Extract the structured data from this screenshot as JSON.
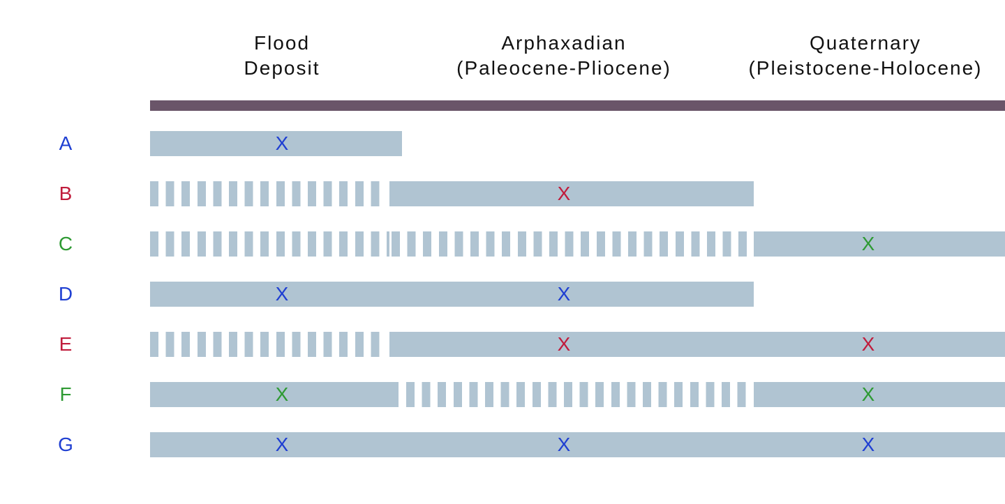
{
  "headers": {
    "flood": {
      "line1": "Flood",
      "line2": "Deposit"
    },
    "arphaxadian": {
      "line1": "Arphaxadian",
      "line2": "(Paleocene-Pliocene)"
    },
    "quaternary": {
      "line1": "Quaternary",
      "line2": "(Pleistocene-Holocene)"
    }
  },
  "colors": {
    "blue": "#1f3fd2",
    "red": "#c01c3c",
    "green": "#2e9a33",
    "bar": "#b0c4d2",
    "timeline": "#6a5569"
  },
  "rows": [
    {
      "label": "A",
      "color": "blue",
      "segments": {
        "flood": "solid",
        "arphaxadian": "none",
        "quaternary": "none"
      },
      "marks": {
        "flood": "X",
        "arphaxadian": "",
        "quaternary": ""
      }
    },
    {
      "label": "B",
      "color": "red",
      "segments": {
        "flood": "dashed",
        "arphaxadian": "solid",
        "quaternary": "none"
      },
      "marks": {
        "flood": "",
        "arphaxadian": "X",
        "quaternary": ""
      }
    },
    {
      "label": "C",
      "color": "green",
      "segments": {
        "flood": "dashed",
        "arphaxadian": "dashed",
        "quaternary": "solid"
      },
      "marks": {
        "flood": "",
        "arphaxadian": "",
        "quaternary": "X"
      }
    },
    {
      "label": "D",
      "color": "blue",
      "segments": {
        "flood": "solid",
        "arphaxadian": "solid",
        "quaternary": "none"
      },
      "marks": {
        "flood": "X",
        "arphaxadian": "X",
        "quaternary": ""
      }
    },
    {
      "label": "E",
      "color": "red",
      "segments": {
        "flood": "dashed",
        "arphaxadian": "solid",
        "quaternary": "solid"
      },
      "marks": {
        "flood": "",
        "arphaxadian": "X",
        "quaternary": "X"
      }
    },
    {
      "label": "F",
      "color": "green",
      "segments": {
        "flood": "solid",
        "arphaxadian": "dashed",
        "quaternary": "solid"
      },
      "marks": {
        "flood": "X",
        "arphaxadian": "",
        "quaternary": "X"
      }
    },
    {
      "label": "G",
      "color": "blue",
      "segments": {
        "flood": "solid",
        "arphaxadian": "solid",
        "quaternary": "solid"
      },
      "marks": {
        "flood": "X",
        "arphaxadian": "X",
        "quaternary": "X"
      }
    }
  ]
}
